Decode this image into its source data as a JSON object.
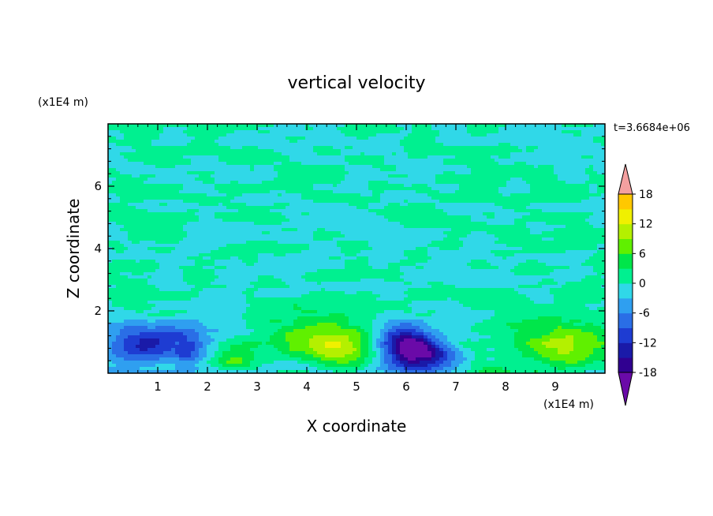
{
  "chart_data": {
    "type": "heatmap",
    "title": "vertical velocity",
    "xlabel": "X coordinate",
    "ylabel": "Z coordinate",
    "x_unit": "(x1E4 m)",
    "y_unit": "(x1E4 m)",
    "time_label": "t=3.6684e+06",
    "xlim": [
      0,
      10
    ],
    "ylim": [
      0,
      8
    ],
    "x_ticks": [
      "1",
      "2",
      "3",
      "4",
      "5",
      "6",
      "7",
      "8",
      "9"
    ],
    "y_ticks": [
      "2",
      "4",
      "6"
    ],
    "colorbar": {
      "range": [
        -21,
        21
      ],
      "step": 3,
      "tick_labels": [
        "18",
        "12",
        "6",
        "0",
        "-6",
        "-12",
        "-18"
      ],
      "tick_values": [
        18,
        12,
        6,
        0,
        -6,
        -12,
        -18
      ],
      "extend": "both",
      "colors": [
        "#6a0aa8",
        "#300090",
        "#1a1aa8",
        "#1e3cd2",
        "#2a6ee6",
        "#2f9ff0",
        "#30d8e8",
        "#00f090",
        "#00e64a",
        "#60f000",
        "#b4f000",
        "#f0f000",
        "#ffc800",
        "#ff9600",
        "#ff6400",
        "#f02814",
        "#e81010",
        "#f4a0a0"
      ]
    },
    "features": [
      {
        "x": 1.0,
        "z": 0.9,
        "peak": -10,
        "sx": 0.6,
        "sz": 0.35,
        "tilt": -0.45
      },
      {
        "x": 1.6,
        "z": 0.6,
        "peak": -7,
        "sx": 0.2,
        "sz": 0.35,
        "tilt": 0
      },
      {
        "x": 2.6,
        "z": 0.5,
        "peak": 9,
        "sx": 0.3,
        "sz": 0.35,
        "tilt": 0
      },
      {
        "x": 4.1,
        "z": 1.1,
        "peak": 8,
        "sx": 0.6,
        "sz": 0.55,
        "tilt": 0
      },
      {
        "x": 4.7,
        "z": 0.8,
        "peak": 8,
        "sx": 0.45,
        "sz": 0.45,
        "tilt": 0
      },
      {
        "x": 6.1,
        "z": 0.8,
        "peak": -19,
        "sx": 0.35,
        "sz": 0.5,
        "tilt": -0.3
      },
      {
        "x": 6.6,
        "z": 0.6,
        "peak": -5,
        "sx": 0.3,
        "sz": 0.3,
        "tilt": 0
      },
      {
        "x": 9.2,
        "z": 0.85,
        "peak": 10,
        "sx": 0.7,
        "sz": 0.6,
        "tilt": 0
      },
      {
        "x": 7.7,
        "z": 0.15,
        "peak": 4,
        "sx": 0.3,
        "sz": 0.15,
        "tilt": 0
      },
      {
        "x": 0.4,
        "z": 1.2,
        "peak": -5,
        "sx": 0.4,
        "sz": 0.4,
        "tilt": 0
      }
    ]
  }
}
